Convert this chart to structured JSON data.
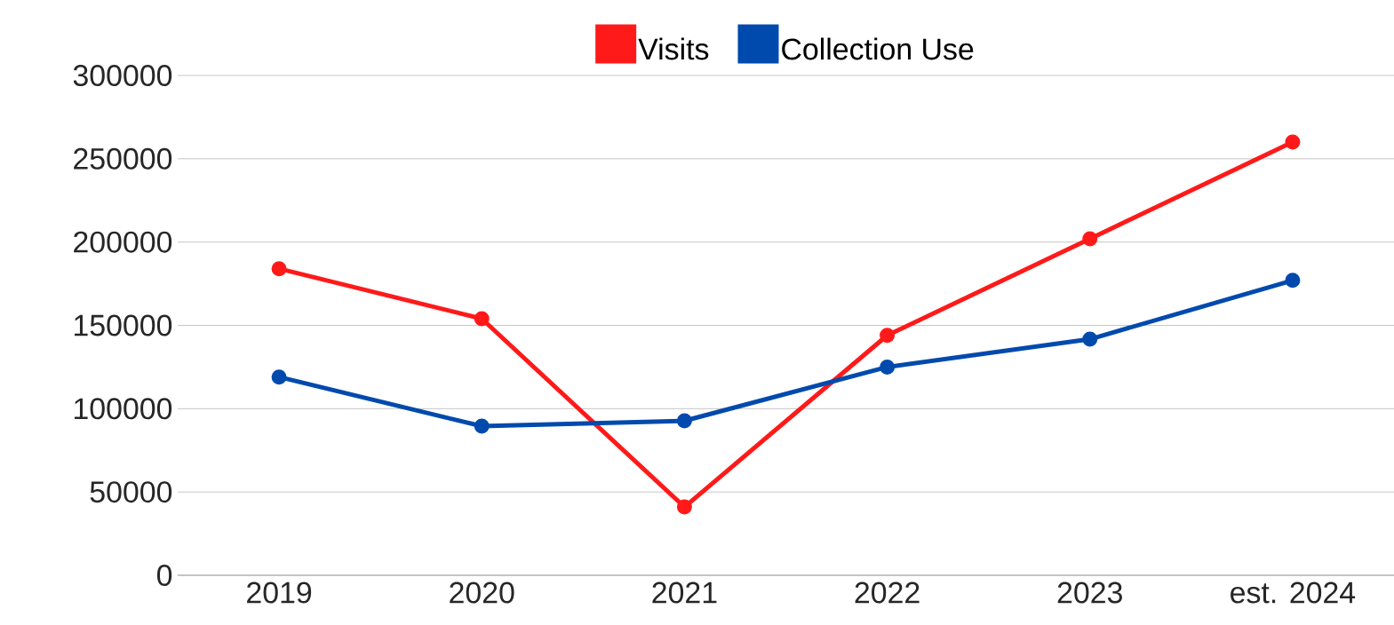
{
  "chart_data": {
    "type": "line",
    "categories": [
      "2019",
      "2020",
      "2021",
      "2022",
      "2023",
      "est. 2024"
    ],
    "series": [
      {
        "name": "Visits",
        "color": "#ff1a1a",
        "values": [
          184000,
          154000,
          41000,
          144000,
          202000,
          260000
        ]
      },
      {
        "name": "Collection Use",
        "color": "#004aad",
        "values": [
          119000,
          89500,
          92700,
          125000,
          141700,
          177000
        ]
      }
    ],
    "ylim": [
      0,
      300000
    ],
    "yticks": [
      0,
      50000,
      100000,
      150000,
      200000,
      250000,
      300000
    ],
    "grid": "y",
    "legend": "top",
    "marker": "circle",
    "line_style": "solid"
  }
}
